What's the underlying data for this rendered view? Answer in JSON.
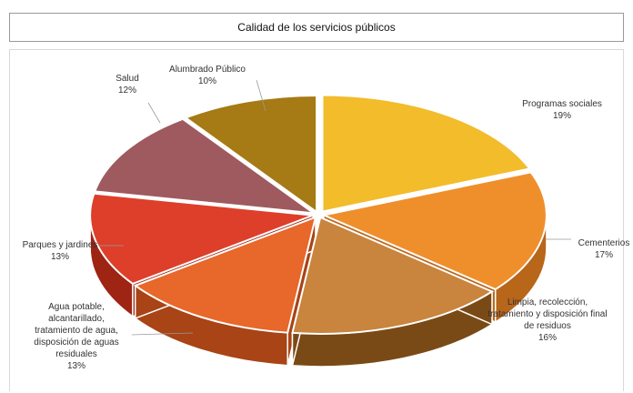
{
  "chart_data": {
    "type": "pie",
    "title": "Calidad de los servicios públicos",
    "slices": [
      {
        "label_lines": [
          "Programas sociales"
        ],
        "pct_text": "19%",
        "value": 19,
        "color": "#f2bc2b",
        "side": "#c8961a"
      },
      {
        "label_lines": [
          "Cementerios"
        ],
        "pct_text": "17%",
        "value": 17,
        "color": "#ef8f2c",
        "side": "#b8661a"
      },
      {
        "label_lines": [
          "Limpia, recolección,",
          "tratamiento y disposición final",
          "de residuos"
        ],
        "pct_text": "16%",
        "value": 16,
        "color": "#c9843e",
        "side": "#7a4a16"
      },
      {
        "label_lines": [
          "Agua potable,",
          "alcantarillado,",
          "tratamiento de agua,",
          "disposición de aguas",
          "residuales"
        ],
        "pct_text": "13%",
        "value": 13,
        "color": "#e8672a",
        "side": "#a84416"
      },
      {
        "label_lines": [
          "Parques y jardines"
        ],
        "pct_text": "13%",
        "value": 13,
        "color": "#dd3f2a",
        "side": "#9e2414"
      },
      {
        "label_lines": [
          "Salud"
        ],
        "pct_text": "12%",
        "value": 12,
        "color": "#9e5a5e",
        "side": "#6a3b3e"
      },
      {
        "label_lines": [
          "Alumbrado Público"
        ],
        "pct_text": "10%",
        "value": 10,
        "color": "#a67a14",
        "side": "#6e4f0a"
      }
    ]
  }
}
